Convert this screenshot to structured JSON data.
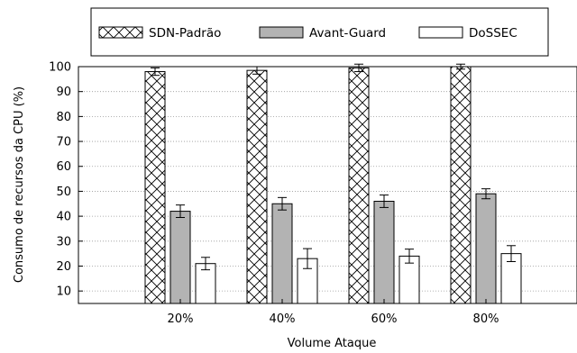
{
  "chart_data": {
    "type": "bar",
    "xlabel": "Volume Ataque",
    "ylabel": "Consumo de recursos da CPU (%)",
    "ylim": [
      5,
      100
    ],
    "yticks": [
      10,
      20,
      30,
      40,
      50,
      60,
      70,
      80,
      90,
      100
    ],
    "categories": [
      "20%",
      "40%",
      "60%",
      "80%"
    ],
    "grid": "horizontal dotted",
    "legend_position": "top",
    "series": [
      {
        "name": "SDN-Padrão",
        "values": [
          98,
          98.5,
          99.5,
          100
        ],
        "errors": [
          1.5,
          1.5,
          1.5,
          1.0
        ],
        "pattern": "crosshatch",
        "color": "#ffffff"
      },
      {
        "name": "Avant-Guard",
        "values": [
          42,
          45,
          46,
          49
        ],
        "errors": [
          2.5,
          2.5,
          2.5,
          2.0
        ],
        "pattern": "solid",
        "color": "#b3b3b3"
      },
      {
        "name": "DoSSEC",
        "values": [
          21,
          23,
          24,
          25
        ],
        "errors": [
          2.5,
          4.0,
          2.8,
          3.2
        ],
        "pattern": "solid",
        "color": "#ffffff"
      }
    ]
  }
}
